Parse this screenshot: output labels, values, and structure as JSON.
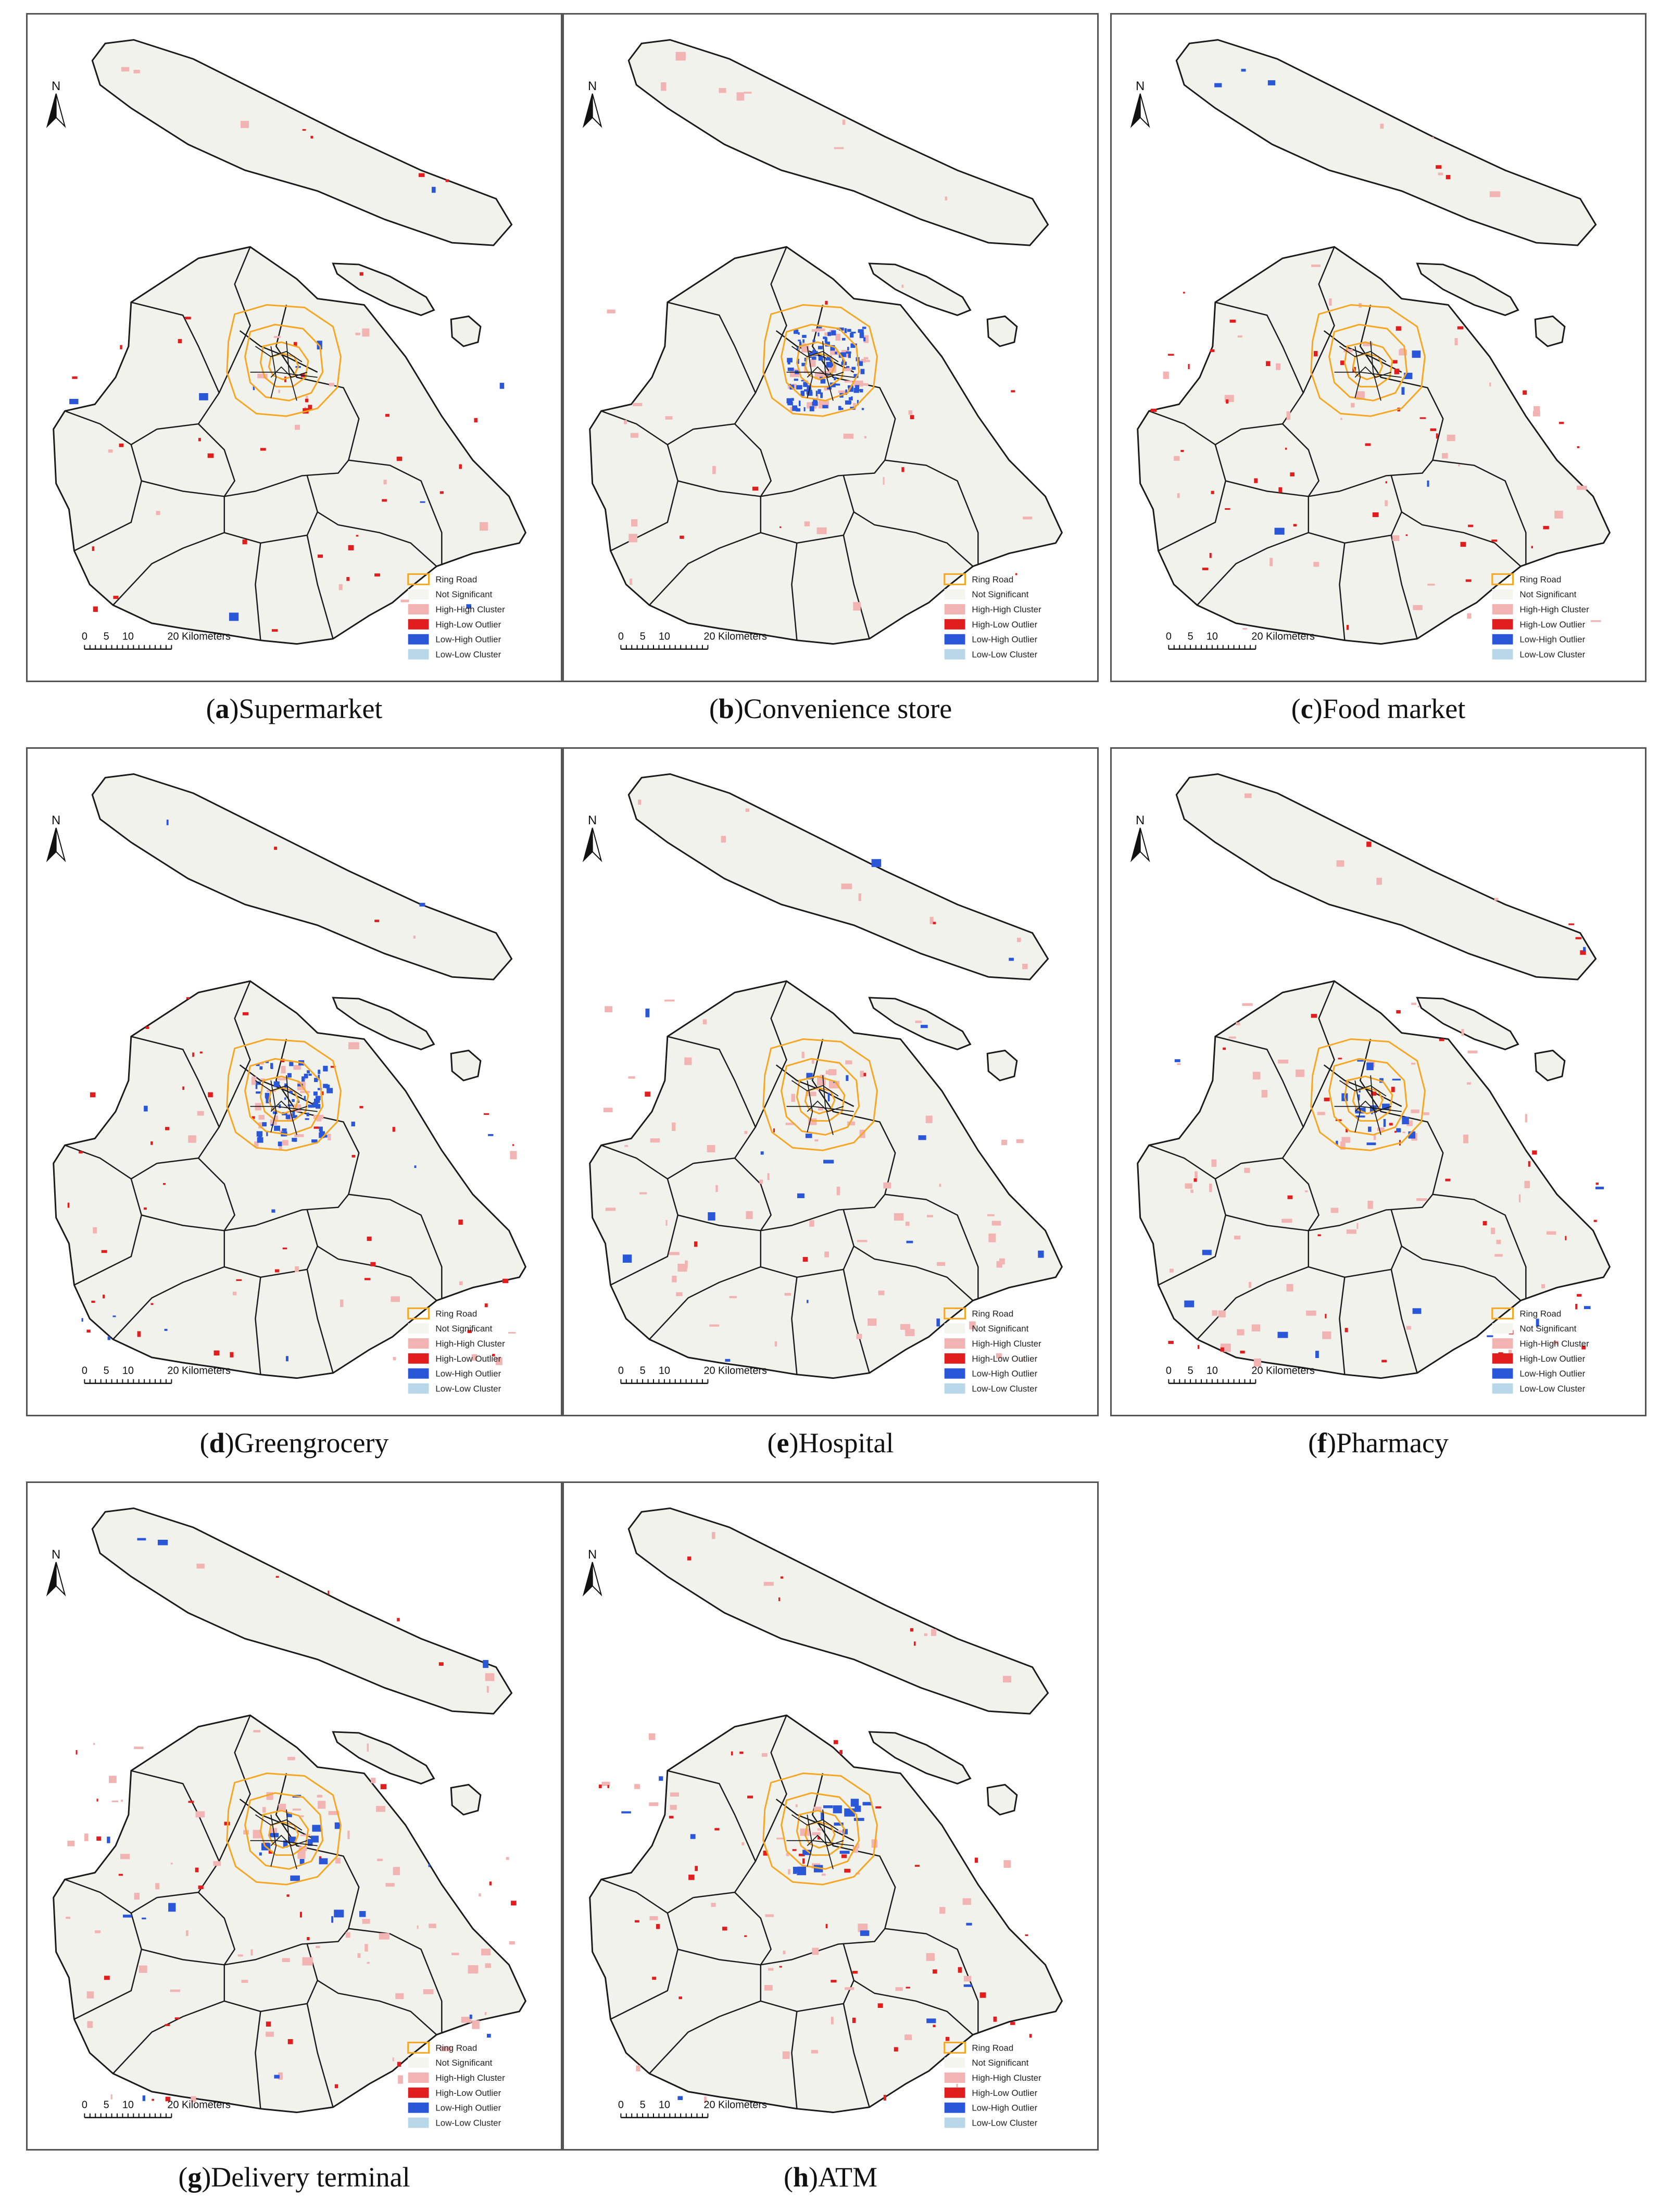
{
  "figure": {
    "panels": [
      {
        "letter": "a",
        "title": "Supermarket"
      },
      {
        "letter": "b",
        "title": "Convenience store"
      },
      {
        "letter": "c",
        "title": "Food market"
      },
      {
        "letter": "d",
        "title": "Greengrocery"
      },
      {
        "letter": "e",
        "title": "Hospital"
      },
      {
        "letter": "f",
        "title": "Pharmacy"
      },
      {
        "letter": "g",
        "title": "Delivery terminal"
      },
      {
        "letter": "h",
        "title": "ATM"
      }
    ]
  },
  "map": {
    "north_label": "N",
    "scale_labels": [
      "0",
      "5",
      "10",
      "20 Kilometers"
    ],
    "legend": [
      {
        "label": "Ring Road",
        "color": "#f5a623",
        "kind": "outline"
      },
      {
        "label": "Not Significant",
        "color": "#f5f5f0",
        "kind": "fill"
      },
      {
        "label": "High-High Cluster",
        "color": "#f2b3b3",
        "kind": "fill"
      },
      {
        "label": "High-Low Outlier",
        "color": "#e01e1e",
        "kind": "fill"
      },
      {
        "label": "Low-High Outlier",
        "color": "#2a56d8",
        "kind": "fill"
      },
      {
        "label": "Low-Low Cluster",
        "color": "#b8d8ea",
        "kind": "fill"
      }
    ],
    "colors": {
      "land": "#f2f2ec",
      "boundary": "#1a1a1a",
      "ring_road": "#f5a623"
    }
  }
}
